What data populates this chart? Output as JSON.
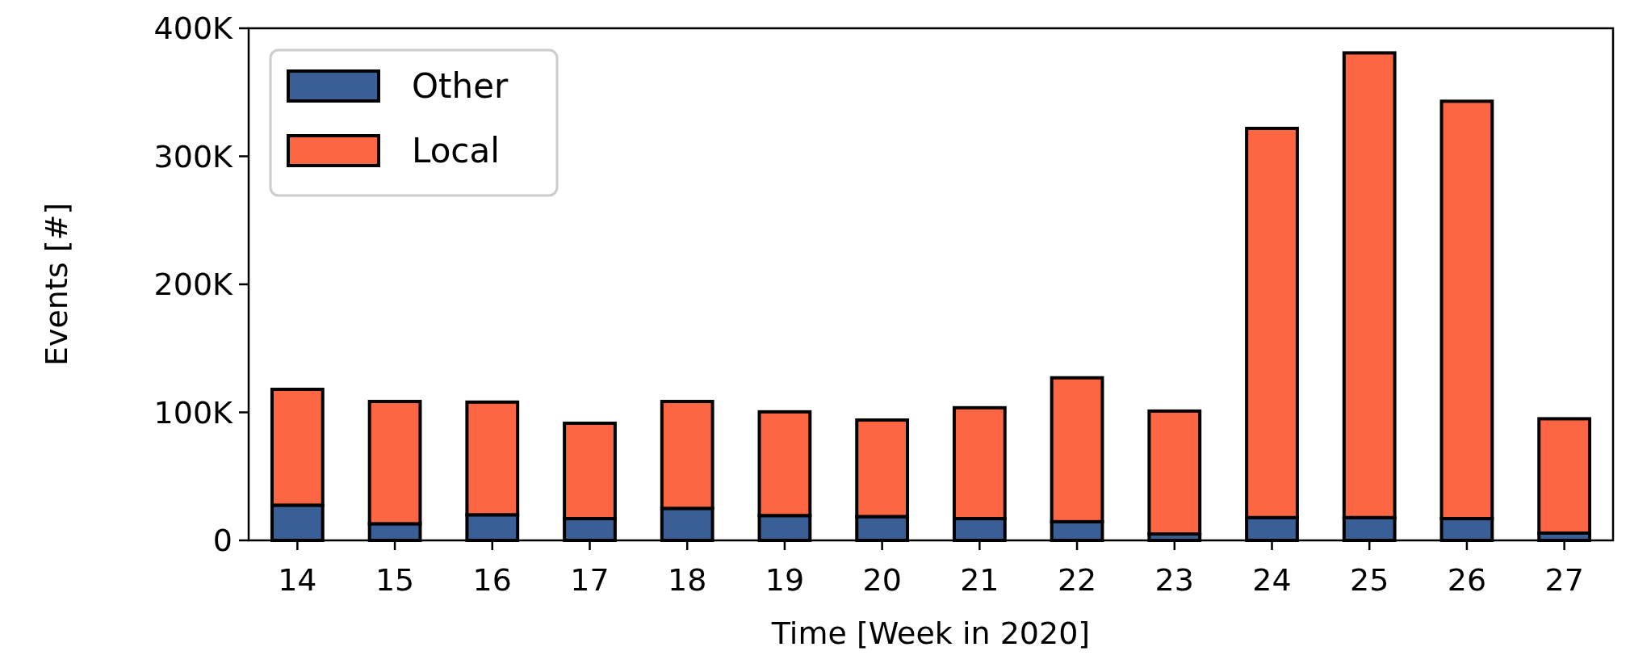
{
  "chart_data": {
    "type": "bar",
    "stacked": true,
    "xlabel": "Time [Week in 2020]",
    "ylabel": "Events [#]",
    "categories": [
      "14",
      "15",
      "16",
      "17",
      "18",
      "19",
      "20",
      "21",
      "22",
      "23",
      "24",
      "25",
      "26",
      "27"
    ],
    "series": [
      {
        "name": "Other",
        "color": "#3a5e96",
        "values": [
          27500,
          13000,
          20000,
          17000,
          25000,
          19400,
          18600,
          17000,
          14600,
          5000,
          17800,
          17800,
          17000,
          5700
        ]
      },
      {
        "name": "Local",
        "color": "#fc6643",
        "values": [
          90500,
          95500,
          88000,
          74500,
          83500,
          81000,
          75400,
          86600,
          112400,
          96000,
          304000,
          363000,
          326000,
          89300
        ]
      }
    ],
    "ylim": [
      0,
      400000
    ],
    "yticks": [
      0,
      {
        "value": 100000,
        "label": "100K"
      },
      {
        "value": 200000,
        "label": "200K"
      },
      {
        "value": 300000,
        "label": "300K"
      },
      {
        "value": 400000,
        "label": "400K"
      }
    ],
    "legend": "top left",
    "grid": false
  }
}
